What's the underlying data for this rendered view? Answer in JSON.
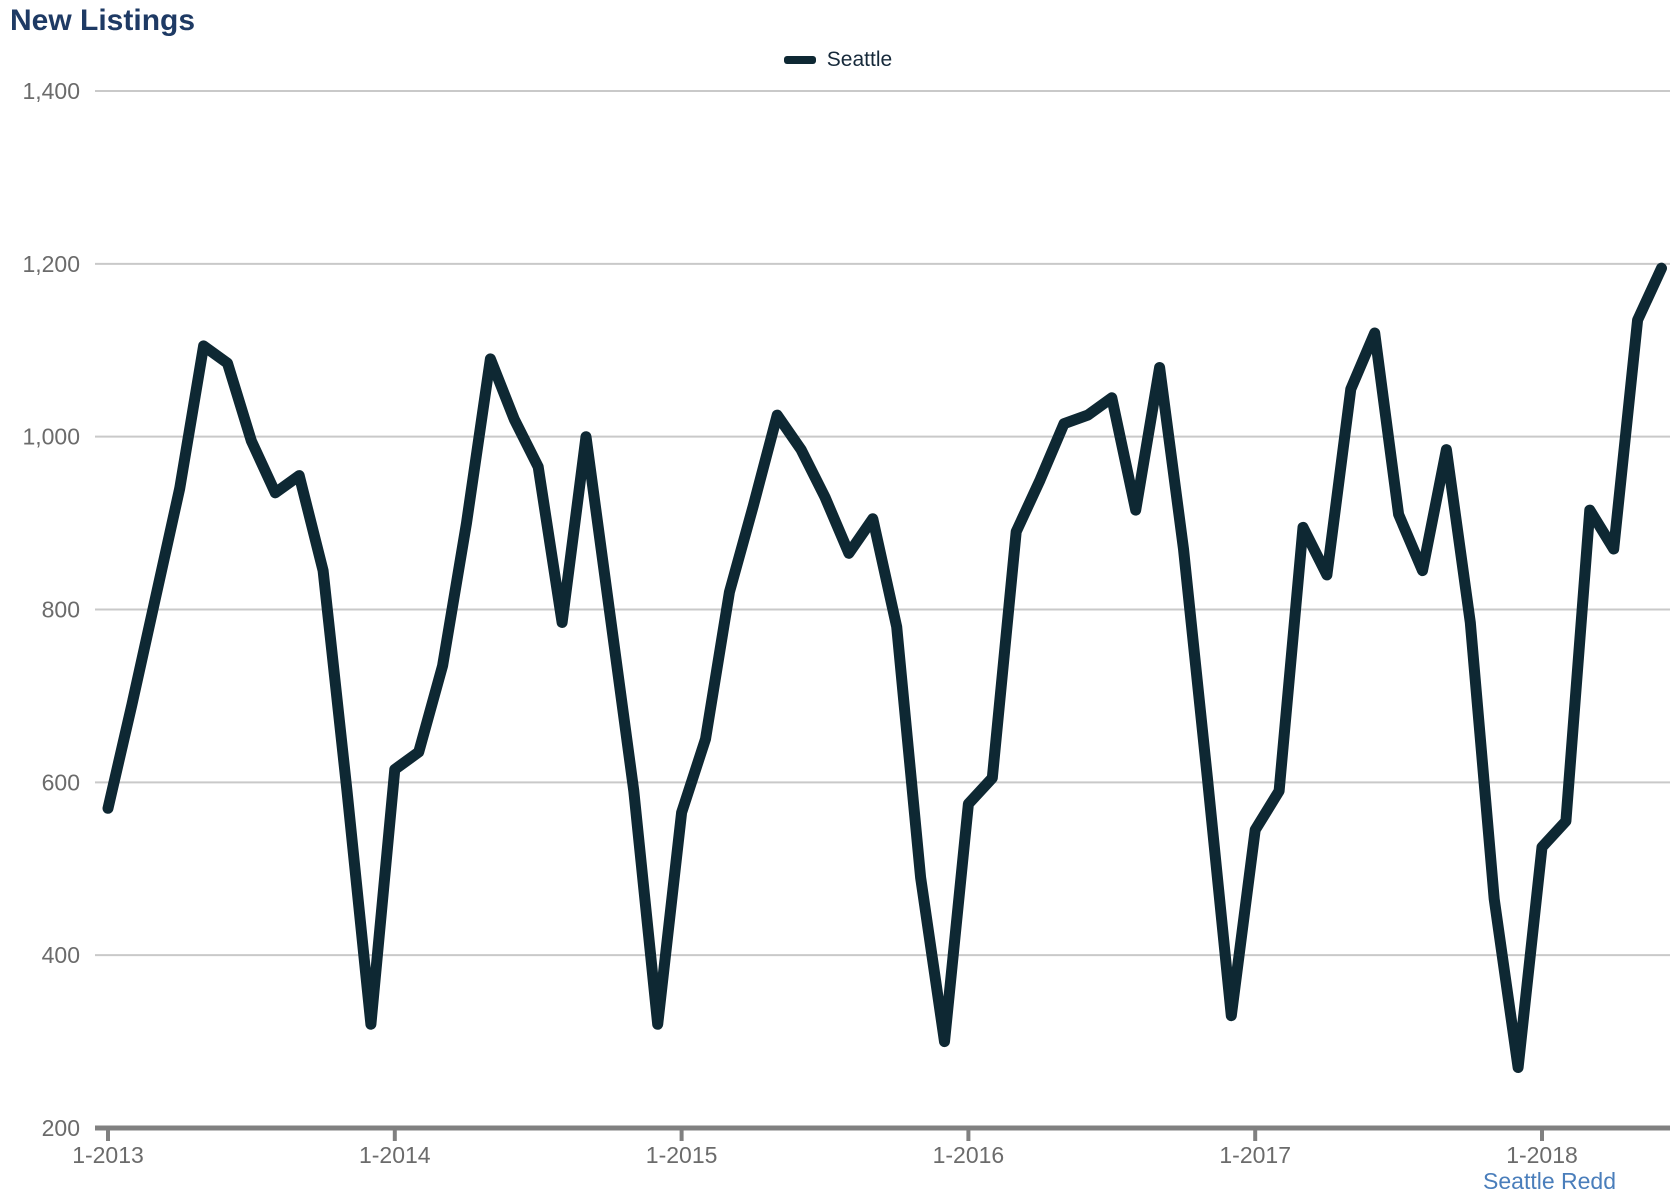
{
  "page": {
    "title": "New Listings",
    "attribution": "Seattle Redd"
  },
  "legend": {
    "label": "Seattle"
  },
  "colors": {
    "title": "#1e3a64",
    "line": "#0e2833",
    "axis": "#808080",
    "gridline": "#c9c9c9",
    "tick_label": "#6b6b6b",
    "attribution": "#4a7ebb"
  },
  "chart_data": {
    "type": "line",
    "title": "New Listings",
    "legend_position": "top-center",
    "grid": "horizontal",
    "ylabel": "",
    "xlabel": "",
    "ylim": [
      200,
      1400
    ],
    "yticks": [
      200,
      400,
      600,
      800,
      1000,
      1200,
      1400
    ],
    "ytick_labels": [
      "200",
      "400",
      "600",
      "800",
      "1,000",
      "1,200",
      "1,400"
    ],
    "x_tick_labels": [
      "1-2013",
      "1-2014",
      "1-2015",
      "1-2016",
      "1-2017",
      "1-2018"
    ],
    "x": [
      "1-2013",
      "2-2013",
      "3-2013",
      "4-2013",
      "5-2013",
      "6-2013",
      "7-2013",
      "8-2013",
      "9-2013",
      "10-2013",
      "11-2013",
      "12-2013",
      "1-2014",
      "2-2014",
      "3-2014",
      "4-2014",
      "5-2014",
      "6-2014",
      "7-2014",
      "8-2014",
      "9-2014",
      "10-2014",
      "11-2014",
      "12-2014",
      "1-2015",
      "2-2015",
      "3-2015",
      "4-2015",
      "5-2015",
      "6-2015",
      "7-2015",
      "8-2015",
      "9-2015",
      "10-2015",
      "11-2015",
      "12-2015",
      "1-2016",
      "2-2016",
      "3-2016",
      "4-2016",
      "5-2016",
      "6-2016",
      "7-2016",
      "8-2016",
      "9-2016",
      "10-2016",
      "11-2016",
      "12-2016",
      "1-2017",
      "2-2017",
      "3-2017",
      "4-2017",
      "5-2017",
      "6-2017",
      "7-2017",
      "8-2017",
      "9-2017",
      "10-2017",
      "11-2017",
      "12-2017",
      "1-2018",
      "2-2018",
      "3-2018",
      "4-2018",
      "5-2018",
      "6-2018"
    ],
    "series": [
      {
        "name": "Seattle",
        "values": [
          570,
          690,
          815,
          940,
          1105,
          1085,
          995,
          935,
          955,
          845,
          590,
          320,
          615,
          635,
          735,
          900,
          1090,
          1020,
          965,
          785,
          1000,
          795,
          590,
          320,
          565,
          650,
          820,
          920,
          1025,
          985,
          930,
          865,
          905,
          780,
          490,
          300,
          575,
          605,
          890,
          950,
          1015,
          1025,
          1045,
          915,
          1080,
          870,
          605,
          330,
          545,
          590,
          895,
          840,
          1055,
          1120,
          910,
          845,
          985,
          785,
          465,
          270,
          525,
          555,
          915,
          870,
          1135,
          1195
        ]
      }
    ]
  }
}
